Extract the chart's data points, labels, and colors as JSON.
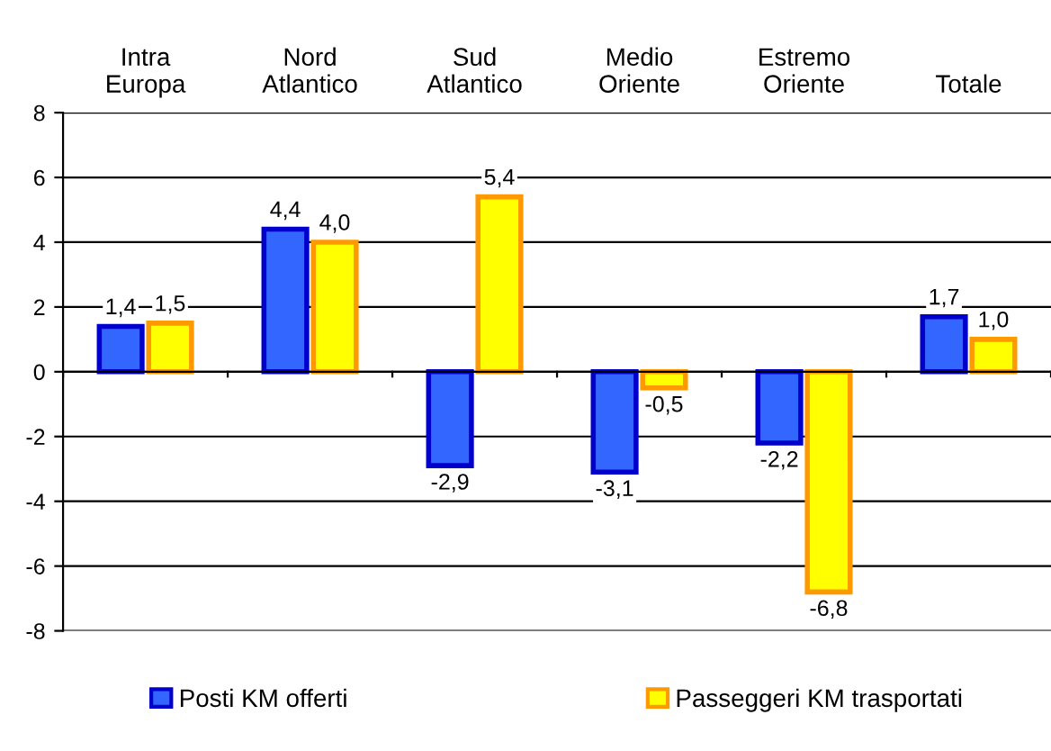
{
  "chart_data": {
    "type": "bar",
    "categories": [
      "Intra\nEuropa",
      "Nord\nAtlantico",
      "Sud\nAtlantico",
      "Medio\nOriente",
      "Estremo\nOriente",
      "Totale"
    ],
    "series": [
      {
        "name": "Posti KM offerti",
        "color": "#3366ff",
        "values": [
          1.4,
          4.4,
          -2.9,
          -3.1,
          -2.2,
          1.7
        ],
        "value_labels": [
          "1,4",
          "4,4",
          "-2,9",
          "-3,1",
          "-2,2",
          "1,7"
        ]
      },
      {
        "name": "Passeggeri KM trasportati",
        "color": "#ffff00",
        "values": [
          1.5,
          4.0,
          5.4,
          -0.5,
          -6.8,
          1.0
        ],
        "value_labels": [
          "1,5",
          "4,0",
          "5,4",
          "-0,5",
          "-6,8",
          "1,0"
        ]
      }
    ],
    "ylim": [
      -8,
      8
    ],
    "yticks": [
      -8,
      -6,
      -4,
      -2,
      0,
      2,
      4,
      6,
      8
    ],
    "grid": "y",
    "legend": "bottom"
  }
}
